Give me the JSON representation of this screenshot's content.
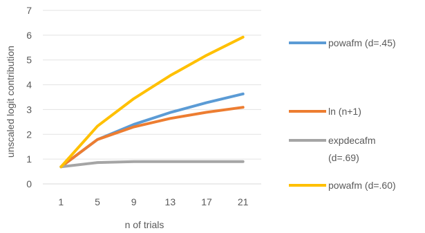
{
  "chart_data": {
    "type": "line",
    "title": "",
    "xlabel": "n of trials",
    "ylabel": "unscaled logit contribution",
    "categories": [
      "1",
      "5",
      "9",
      "13",
      "17",
      "21"
    ],
    "ylim": [
      0,
      7
    ],
    "yticks": [
      "0",
      "1",
      "2",
      "3",
      "4",
      "5",
      "6",
      "7"
    ],
    "grid": true,
    "legend_position": "right",
    "series": [
      {
        "name": "powafm (d=.45)",
        "legend_lines": [
          "powafm (d=.45)"
        ],
        "color": "#5B9BD5",
        "values": [
          0.69,
          1.79,
          2.4,
          2.88,
          3.28,
          3.63
        ]
      },
      {
        "name": "ln (n+1)",
        "legend_lines": [
          "ln (n+1)"
        ],
        "color": "#ED7D31",
        "values": [
          0.69,
          1.79,
          2.3,
          2.64,
          2.89,
          3.09
        ]
      },
      {
        "name": "expdecafm (d=.69)",
        "legend_lines": [
          "expdecafm",
          "(d=.69)"
        ],
        "color": "#A5A5A5",
        "values": [
          0.69,
          0.86,
          0.9,
          0.9,
          0.9,
          0.9
        ]
      },
      {
        "name": "powafm (d=.60)",
        "legend_lines": [
          "powafm (d=.60)"
        ],
        "color": "#FFC000",
        "values": [
          0.69,
          2.33,
          3.44,
          4.37,
          5.19,
          5.92
        ]
      }
    ]
  }
}
